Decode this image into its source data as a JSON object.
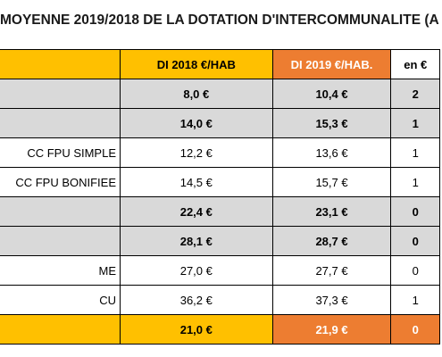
{
  "title": "MOYENNE 2019/2018 DE LA DOTATION D'INTERCOMMUNALITE (A",
  "headers": [
    "",
    "DI 2018 €/HAB",
    "DI 2019 €/HAB.",
    "en €"
  ],
  "rows": [
    {
      "label": "",
      "v2018": "8,0 €",
      "v2019": "10,4 €",
      "diff": "2"
    },
    {
      "label": "",
      "v2018": "14,0 €",
      "v2019": "15,3 €",
      "diff": "1"
    },
    {
      "label": "CC FPU SIMPLE",
      "v2018": "12,2 €",
      "v2019": "13,6 €",
      "diff": "1"
    },
    {
      "label": "CC FPU BONIFIEE",
      "v2018": "14,5 €",
      "v2019": "15,7 €",
      "diff": "1"
    },
    {
      "label": "",
      "v2018": "22,4 €",
      "v2019": "23,1 €",
      "diff": "0"
    },
    {
      "label": "",
      "v2018": "28,1 €",
      "v2019": "28,7 €",
      "diff": "0"
    },
    {
      "label": "ME",
      "v2018": "27,0 €",
      "v2019": "27,7 €",
      "diff": "0"
    },
    {
      "label": "CU",
      "v2018": "36,2 €",
      "v2019": "37,3 €",
      "diff": "1"
    }
  ],
  "total": {
    "label": "",
    "v2018": "21,0 €",
    "v2019": "21,9 €",
    "diff": "0"
  },
  "colors": {
    "yellow": "#ffc000",
    "orange": "#ed7d31",
    "grey": "#d9d9d9"
  }
}
